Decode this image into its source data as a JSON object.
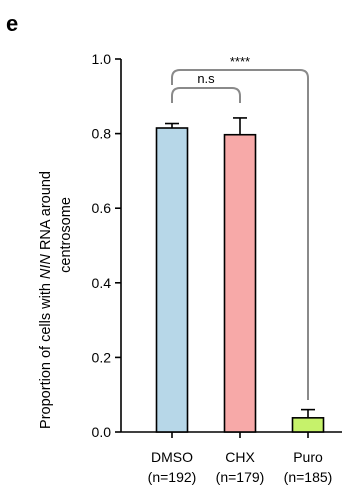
{
  "panel_label": "e",
  "chart_data": {
    "type": "bar",
    "categories": [
      "DMSO",
      "CHX",
      "Puro"
    ],
    "category_sublabels": [
      "(n=192)",
      "(n=179)",
      "(n=185)"
    ],
    "values": [
      0.815,
      0.797,
      0.038
    ],
    "errors": [
      0.012,
      0.045,
      0.022
    ],
    "colors": [
      "#b7d7e8",
      "#f7a9a8",
      "#c6f26b"
    ],
    "ylabel_line1_pre": "Proportion of cells with ",
    "ylabel_line1_italic": "NIN",
    "ylabel_line1_post": " RNA around",
    "ylabel_line2": "centrosome",
    "ylim": [
      0,
      1.0
    ],
    "yticks": [
      "0.0",
      "0.2",
      "0.4",
      "0.6",
      "0.8",
      "1.0"
    ],
    "significance": [
      {
        "label": "n.s",
        "from": 0,
        "to": 1
      },
      {
        "label": "****",
        "from": 0,
        "to": 2
      }
    ],
    "bracket_color": "#8a8a8a"
  }
}
